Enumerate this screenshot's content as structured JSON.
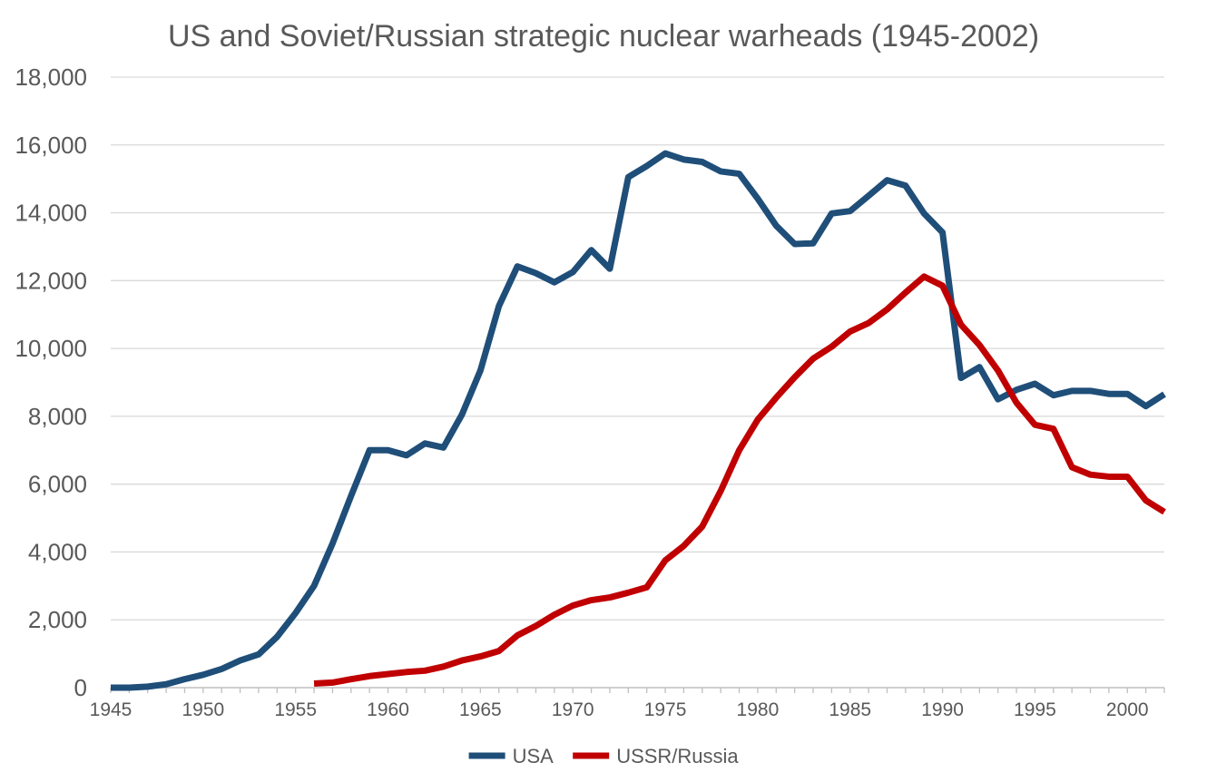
{
  "chart_data": {
    "type": "line",
    "title": "US and Soviet/Russian strategic nuclear warheads (1945-2002)",
    "xlabel": "",
    "ylabel": "",
    "xlim": [
      1945,
      2002
    ],
    "ylim": [
      0,
      18000
    ],
    "grid": true,
    "legend_position": "bottom",
    "y_ticks": [
      {
        "value": 0,
        "label": "0"
      },
      {
        "value": 2000,
        "label": "2,000"
      },
      {
        "value": 4000,
        "label": "4,000"
      },
      {
        "value": 6000,
        "label": "6,000"
      },
      {
        "value": 8000,
        "label": "8,000"
      },
      {
        "value": 10000,
        "label": "10,000"
      },
      {
        "value": 12000,
        "label": "12,000"
      },
      {
        "value": 14000,
        "label": "14,000"
      },
      {
        "value": 16000,
        "label": "16,000"
      },
      {
        "value": 18000,
        "label": "18,000"
      }
    ],
    "x_ticks": [
      {
        "value": 1945,
        "label": "1945"
      },
      {
        "value": 1950,
        "label": "1950"
      },
      {
        "value": 1955,
        "label": "1955"
      },
      {
        "value": 1960,
        "label": "1960"
      },
      {
        "value": 1965,
        "label": "1965"
      },
      {
        "value": 1970,
        "label": "1970"
      },
      {
        "value": 1975,
        "label": "1975"
      },
      {
        "value": 1980,
        "label": "1980"
      },
      {
        "value": 1985,
        "label": "1985"
      },
      {
        "value": 1990,
        "label": "1990"
      },
      {
        "value": 1995,
        "label": "1995"
      },
      {
        "value": 2000,
        "label": "2000"
      }
    ],
    "series": [
      {
        "name": "USA",
        "color": "#1f4e79",
        "points": [
          [
            1945,
            0
          ],
          [
            1946,
            0
          ],
          [
            1947,
            30
          ],
          [
            1948,
            100
          ],
          [
            1949,
            250
          ],
          [
            1950,
            380
          ],
          [
            1951,
            550
          ],
          [
            1952,
            800
          ],
          [
            1953,
            980
          ],
          [
            1954,
            1500
          ],
          [
            1955,
            2200
          ],
          [
            1956,
            3000
          ],
          [
            1957,
            4250
          ],
          [
            1958,
            5650
          ],
          [
            1959,
            7000
          ],
          [
            1960,
            7000
          ],
          [
            1961,
            6850
          ],
          [
            1962,
            7200
          ],
          [
            1963,
            7080
          ],
          [
            1964,
            8050
          ],
          [
            1965,
            9350
          ],
          [
            1966,
            11250
          ],
          [
            1967,
            12420
          ],
          [
            1968,
            12220
          ],
          [
            1969,
            11950
          ],
          [
            1970,
            12250
          ],
          [
            1971,
            12900
          ],
          [
            1972,
            12350
          ],
          [
            1973,
            15050
          ],
          [
            1974,
            15380
          ],
          [
            1975,
            15750
          ],
          [
            1976,
            15570
          ],
          [
            1977,
            15500
          ],
          [
            1978,
            15220
          ],
          [
            1979,
            15150
          ],
          [
            1980,
            14420
          ],
          [
            1981,
            13620
          ],
          [
            1982,
            13080
          ],
          [
            1983,
            13100
          ],
          [
            1984,
            13980
          ],
          [
            1985,
            14050
          ],
          [
            1986,
            14500
          ],
          [
            1987,
            14960
          ],
          [
            1988,
            14800
          ],
          [
            1989,
            13980
          ],
          [
            1990,
            13420
          ],
          [
            1991,
            9130
          ],
          [
            1992,
            9450
          ],
          [
            1993,
            8500
          ],
          [
            1994,
            8780
          ],
          [
            1995,
            8960
          ],
          [
            1996,
            8620
          ],
          [
            1997,
            8750
          ],
          [
            1998,
            8750
          ],
          [
            1999,
            8660
          ],
          [
            2000,
            8660
          ],
          [
            2001,
            8300
          ],
          [
            2002,
            8650
          ]
        ]
      },
      {
        "name": "USSR/Russia",
        "color": "#c00000",
        "points": [
          [
            1956,
            120
          ],
          [
            1957,
            150
          ],
          [
            1958,
            250
          ],
          [
            1959,
            340
          ],
          [
            1960,
            400
          ],
          [
            1961,
            460
          ],
          [
            1962,
            500
          ],
          [
            1963,
            620
          ],
          [
            1964,
            800
          ],
          [
            1965,
            920
          ],
          [
            1966,
            1080
          ],
          [
            1967,
            1540
          ],
          [
            1968,
            1820
          ],
          [
            1969,
            2150
          ],
          [
            1970,
            2420
          ],
          [
            1971,
            2580
          ],
          [
            1972,
            2660
          ],
          [
            1973,
            2800
          ],
          [
            1974,
            2960
          ],
          [
            1975,
            3750
          ],
          [
            1976,
            4180
          ],
          [
            1977,
            4750
          ],
          [
            1978,
            5800
          ],
          [
            1979,
            7000
          ],
          [
            1980,
            7900
          ],
          [
            1981,
            8550
          ],
          [
            1982,
            9150
          ],
          [
            1983,
            9700
          ],
          [
            1984,
            10050
          ],
          [
            1985,
            10500
          ],
          [
            1986,
            10750
          ],
          [
            1987,
            11150
          ],
          [
            1988,
            11650
          ],
          [
            1989,
            12120
          ],
          [
            1990,
            11850
          ],
          [
            1991,
            10700
          ],
          [
            1992,
            10100
          ],
          [
            1993,
            9350
          ],
          [
            1994,
            8400
          ],
          [
            1995,
            7750
          ],
          [
            1996,
            7630
          ],
          [
            1997,
            6500
          ],
          [
            1998,
            6280
          ],
          [
            1999,
            6220
          ],
          [
            2000,
            6220
          ],
          [
            2001,
            5520
          ],
          [
            2002,
            5180
          ]
        ]
      }
    ]
  }
}
